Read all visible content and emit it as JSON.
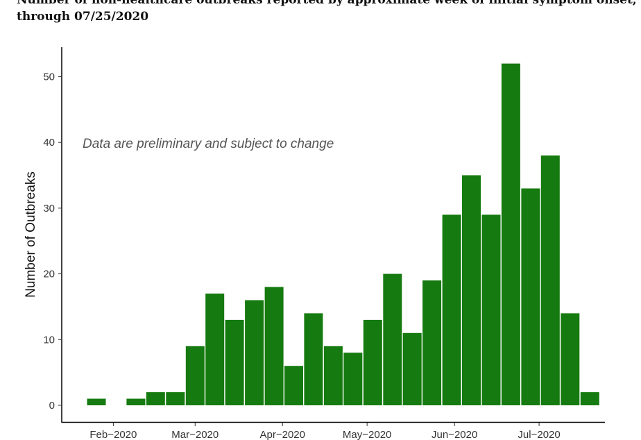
{
  "chart_data": {
    "type": "bar",
    "title_line1": "Number of non-healthcare outbreaks reported by approximate week of initial symptom onset,",
    "title_line2": "through 07/25/2020",
    "ylabel": "Number of Outbreaks",
    "xlabel": "",
    "annotation": "Data are preliminary and subject to change",
    "ylim": [
      0,
      55
    ],
    "yticks": [
      0,
      10,
      20,
      30,
      40,
      50
    ],
    "x_tick_labels": [
      "Feb−2020",
      "Mar−2020",
      "Apr−2020",
      "May−2020",
      "Jun−2020",
      "Jul−2020"
    ],
    "x_tick_dates": [
      "2020-02-01",
      "2020-03-01",
      "2020-04-01",
      "2020-05-01",
      "2020-06-01",
      "2020-07-01"
    ],
    "bar_color": "#157a0f",
    "bars": [
      {
        "week": "2020-01-26",
        "value": 1
      },
      {
        "week": "2020-02-02",
        "value": 0
      },
      {
        "week": "2020-02-09",
        "value": 1
      },
      {
        "week": "2020-02-16",
        "value": 2
      },
      {
        "week": "2020-02-23",
        "value": 2
      },
      {
        "week": "2020-03-01",
        "value": 9
      },
      {
        "week": "2020-03-08",
        "value": 17
      },
      {
        "week": "2020-03-15",
        "value": 13
      },
      {
        "week": "2020-03-22",
        "value": 16
      },
      {
        "week": "2020-03-29",
        "value": 18
      },
      {
        "week": "2020-04-05",
        "value": 6
      },
      {
        "week": "2020-04-12",
        "value": 14
      },
      {
        "week": "2020-04-19",
        "value": 9
      },
      {
        "week": "2020-04-26",
        "value": 8
      },
      {
        "week": "2020-05-03",
        "value": 13
      },
      {
        "week": "2020-05-10",
        "value": 20
      },
      {
        "week": "2020-05-17",
        "value": 11
      },
      {
        "week": "2020-05-24",
        "value": 19
      },
      {
        "week": "2020-05-31",
        "value": 29
      },
      {
        "week": "2020-06-07",
        "value": 35
      },
      {
        "week": "2020-06-14",
        "value": 29
      },
      {
        "week": "2020-06-21",
        "value": 52
      },
      {
        "week": "2020-06-28",
        "value": 33
      },
      {
        "week": "2020-07-05",
        "value": 38
      },
      {
        "week": "2020-07-12",
        "value": 14
      },
      {
        "week": "2020-07-19",
        "value": 2
      }
    ]
  }
}
